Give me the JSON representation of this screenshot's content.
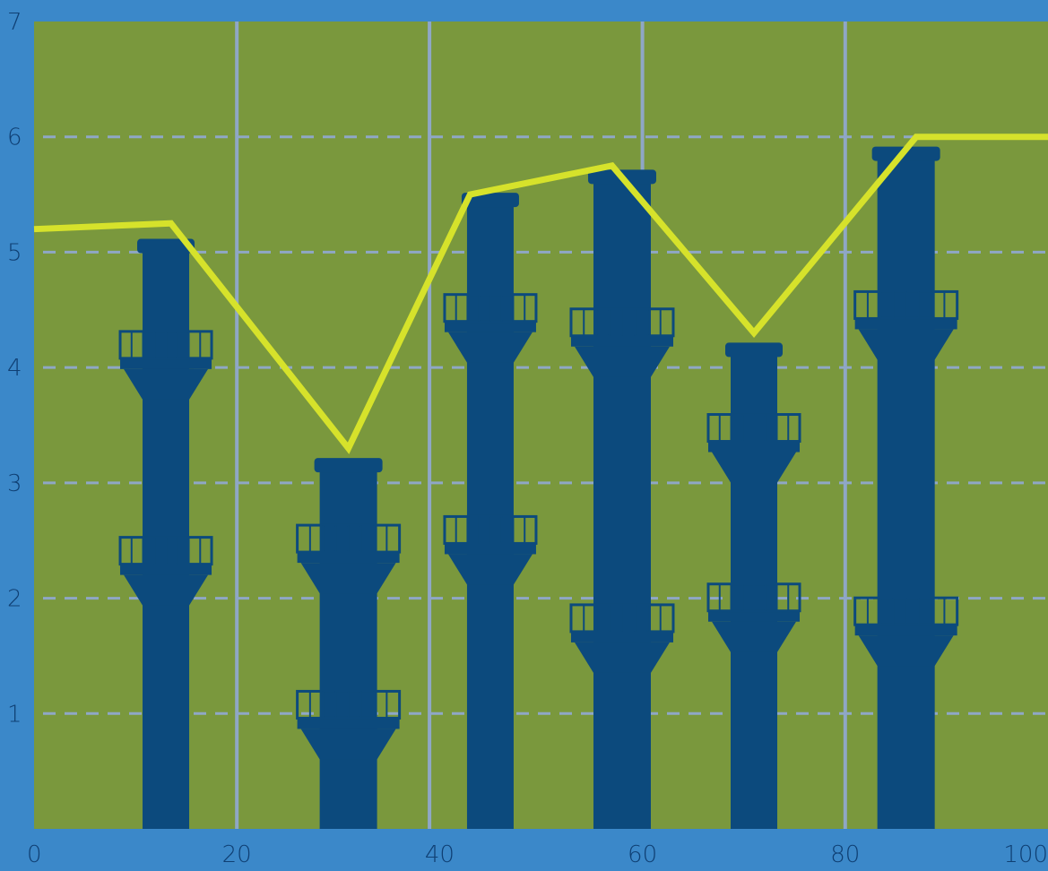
{
  "colors": {
    "frame": "#3b88c9",
    "plot_bg": "#7a983d",
    "chimney": "#0c4a7d",
    "line": "#d6e22b",
    "grid": "#8fa7c6",
    "tick_text": "#0f3f73"
  },
  "chart_data": {
    "type": "bar",
    "title": "",
    "xlabel": "",
    "ylabel": "",
    "xlim": [
      0,
      100
    ],
    "ylim": [
      0,
      7
    ],
    "x_ticks": [
      0,
      20,
      40,
      60,
      80,
      100
    ],
    "y_ticks": [
      1,
      2,
      3,
      4,
      5,
      6,
      7
    ],
    "grid": {
      "vertical_solid": [
        20,
        39,
        60,
        80
      ],
      "horizontal_dashed": [
        1,
        2,
        3,
        4,
        5,
        6
      ]
    },
    "bars_as_chimneys": [
      {
        "x": 13,
        "value": 5.1
      },
      {
        "x": 31,
        "value": 3.2
      },
      {
        "x": 45,
        "value": 5.5
      },
      {
        "x": 58,
        "value": 5.7
      },
      {
        "x": 71,
        "value": 4.2
      },
      {
        "x": 86,
        "value": 5.9
      }
    ],
    "line_series": {
      "x": [
        0,
        13.5,
        31,
        43,
        57,
        71,
        87,
        100
      ],
      "y": [
        5.2,
        5.25,
        3.3,
        5.5,
        5.75,
        4.3,
        6.0,
        6.0
      ]
    }
  }
}
